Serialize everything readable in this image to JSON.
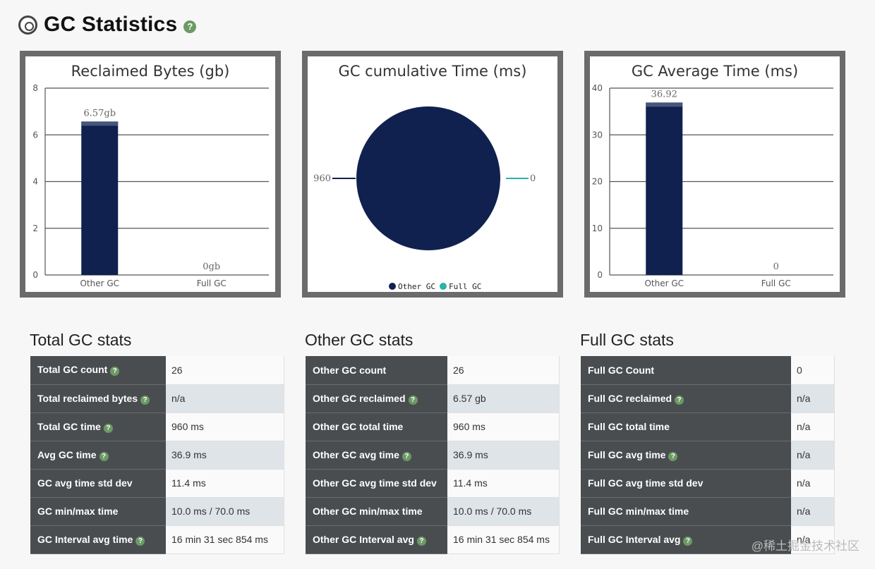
{
  "page": {
    "title": "GC Statistics",
    "watermark": "@稀土掘金技术社区"
  },
  "chart_data": [
    {
      "type": "bar",
      "title": "Reclaimed Bytes (gb)",
      "categories": [
        "Other GC",
        "Full GC"
      ],
      "values": [
        6.57,
        0
      ],
      "data_labels": [
        "6.57gb",
        "0gb"
      ],
      "ylim": [
        0,
        8
      ],
      "yticks": [
        "0",
        "2",
        "4",
        "6",
        "8"
      ],
      "bar_color": "#10214f",
      "grid": true
    },
    {
      "type": "pie",
      "title": "GC cumulative Time (ms)",
      "categories": [
        "Other GC",
        "Full GC"
      ],
      "values": [
        960,
        0
      ],
      "data_labels": [
        "960",
        "0"
      ],
      "colors": [
        "#10214f",
        "#2ab3a6"
      ],
      "legend": [
        "Other GC",
        "Full GC"
      ],
      "legend_position": "bottom"
    },
    {
      "type": "bar",
      "title": "GC Average Time (ms)",
      "categories": [
        "Other GC",
        "Full GC"
      ],
      "values": [
        36.92,
        0
      ],
      "data_labels": [
        "36.92",
        "0"
      ],
      "ylim": [
        0,
        40
      ],
      "yticks": [
        "0",
        "10",
        "20",
        "30",
        "40"
      ],
      "bar_color": "#10214f",
      "grid": true
    }
  ],
  "tables": [
    {
      "heading": "Total GC stats",
      "rows": [
        {
          "label": "Total GC count",
          "help": true,
          "value": "26"
        },
        {
          "label": "Total reclaimed bytes",
          "help": true,
          "value": "n/a"
        },
        {
          "label": "Total GC time",
          "help": true,
          "value": "960 ms"
        },
        {
          "label": "Avg GC time",
          "help": true,
          "value": "36.9 ms"
        },
        {
          "label": "GC avg time std dev",
          "help": false,
          "value": "11.4 ms"
        },
        {
          "label": "GC min/max time",
          "help": false,
          "value": "10.0 ms / 70.0 ms"
        },
        {
          "label": "GC Interval avg time",
          "help": true,
          "value": "16 min 31 sec 854 ms"
        }
      ]
    },
    {
      "heading": "Other GC stats",
      "rows": [
        {
          "label": "Other GC count",
          "help": false,
          "value": "26"
        },
        {
          "label": "Other GC reclaimed",
          "help": true,
          "value": "6.57 gb"
        },
        {
          "label": "Other GC total time",
          "help": false,
          "value": "960 ms"
        },
        {
          "label": "Other GC avg time",
          "help": true,
          "value": "36.9 ms"
        },
        {
          "label": "Other GC avg time std dev",
          "help": false,
          "value": "11.4 ms"
        },
        {
          "label": "Other GC min/max time",
          "help": false,
          "value": "10.0 ms / 70.0 ms"
        },
        {
          "label": "Other GC Interval avg",
          "help": true,
          "value": "16 min 31 sec 854 ms"
        }
      ]
    },
    {
      "heading": "Full GC stats",
      "rows": [
        {
          "label": "Full GC Count",
          "help": false,
          "value": "0"
        },
        {
          "label": "Full GC reclaimed",
          "help": true,
          "value": "n/a"
        },
        {
          "label": "Full GC total time",
          "help": false,
          "value": "n/a"
        },
        {
          "label": "Full GC avg time",
          "help": true,
          "value": "n/a"
        },
        {
          "label": "Full GC avg time std dev",
          "help": false,
          "value": "n/a"
        },
        {
          "label": "Full GC min/max time",
          "help": false,
          "value": "n/a"
        },
        {
          "label": "Full GC Interval avg",
          "help": true,
          "value": "n/a"
        }
      ]
    }
  ],
  "icons": {
    "logo": "gauge-logo-icon",
    "help": "question-circle-icon",
    "help_glyph": "?"
  },
  "colors": {
    "panel_border": "#6b6b6b",
    "key_cell": "#4a4d50",
    "help": "#6b9a64"
  }
}
